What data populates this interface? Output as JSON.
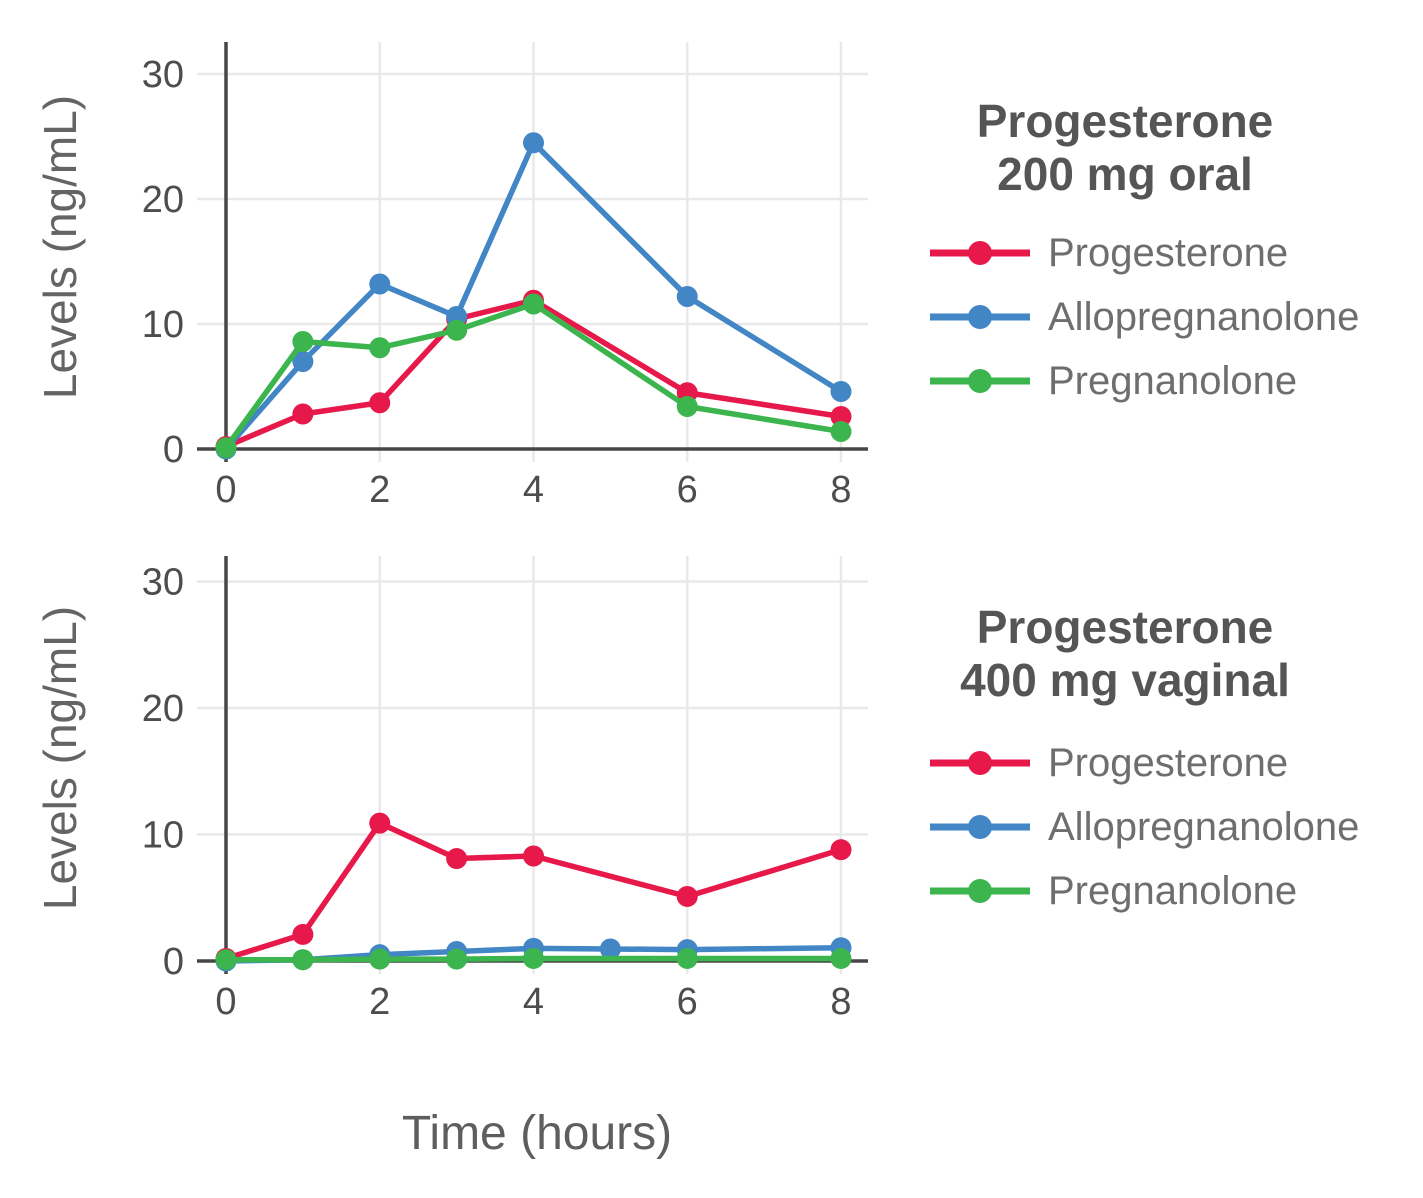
{
  "figure": {
    "xlabel": "Time (hours)",
    "ylabel": "Levels (ng/mL)",
    "colors": {
      "progesterone": "#e7194a",
      "allopregnanolone": "#4286c5",
      "pregnanolone": "#3cb54e",
      "grid": "#e9e9e9",
      "axis": "#474747",
      "tick_label": "#4d4d4d",
      "axis_title": "#646464",
      "legend_title": "#555555",
      "legend_text": "#6e6e6e",
      "background": "#ffffff"
    }
  },
  "chart_data": [
    {
      "type": "line",
      "title": "Progesterone 200 mg oral",
      "title_lines": [
        "Progesterone",
        "200 mg oral"
      ],
      "xlabel": "Time (hours)",
      "ylabel": "Levels (ng/mL)",
      "xlim": [
        0,
        8.35
      ],
      "ylim": [
        0,
        32.5
      ],
      "xticks": [
        0,
        2,
        4,
        6,
        8
      ],
      "yticks": [
        0,
        10,
        20,
        30
      ],
      "grid": true,
      "legend_position": "right",
      "series": [
        {
          "name": "Progesterone",
          "color_key": "progesterone",
          "x": [
            0,
            1,
            2,
            3,
            4,
            6,
            8
          ],
          "values": [
            0.2,
            2.8,
            3.7,
            10.4,
            11.9,
            4.5,
            2.6
          ]
        },
        {
          "name": "Allopregnanolone",
          "color_key": "allopregnanolone",
          "x": [
            0,
            1,
            2,
            3,
            4,
            6,
            8
          ],
          "values": [
            0.0,
            7.0,
            13.2,
            10.6,
            24.5,
            12.2,
            4.6
          ]
        },
        {
          "name": "Pregnanolone",
          "color_key": "pregnanolone",
          "x": [
            0,
            1,
            2,
            3,
            4,
            6,
            8
          ],
          "values": [
            0.1,
            8.6,
            8.1,
            9.5,
            11.6,
            3.4,
            1.4
          ]
        }
      ]
    },
    {
      "type": "line",
      "title": "Progesterone 400 mg vaginal",
      "title_lines": [
        "Progesterone",
        "400 mg vaginal"
      ],
      "xlabel": "Time (hours)",
      "ylabel": "Levels (ng/mL)",
      "xlim": [
        0,
        8.35
      ],
      "ylim": [
        0,
        32
      ],
      "xticks": [
        0,
        2,
        4,
        6,
        8
      ],
      "yticks": [
        0,
        10,
        20,
        30
      ],
      "grid": true,
      "legend_position": "right",
      "series": [
        {
          "name": "Progesterone",
          "color_key": "progesterone",
          "x": [
            0,
            1,
            2,
            3,
            4,
            6,
            8
          ],
          "values": [
            0.2,
            2.1,
            10.9,
            8.1,
            8.3,
            5.1,
            8.8
          ]
        },
        {
          "name": "Allopregnanolone",
          "color_key": "allopregnanolone",
          "x": [
            0,
            1,
            2,
            3,
            4,
            5,
            6,
            8
          ],
          "values": [
            0.0,
            0.1,
            0.5,
            0.75,
            1.0,
            0.95,
            0.9,
            1.05
          ]
        },
        {
          "name": "Pregnanolone",
          "color_key": "pregnanolone",
          "x": [
            0,
            1,
            2,
            3,
            4,
            6,
            8
          ],
          "values": [
            0.1,
            0.1,
            0.15,
            0.15,
            0.2,
            0.2,
            0.2
          ]
        }
      ]
    }
  ]
}
